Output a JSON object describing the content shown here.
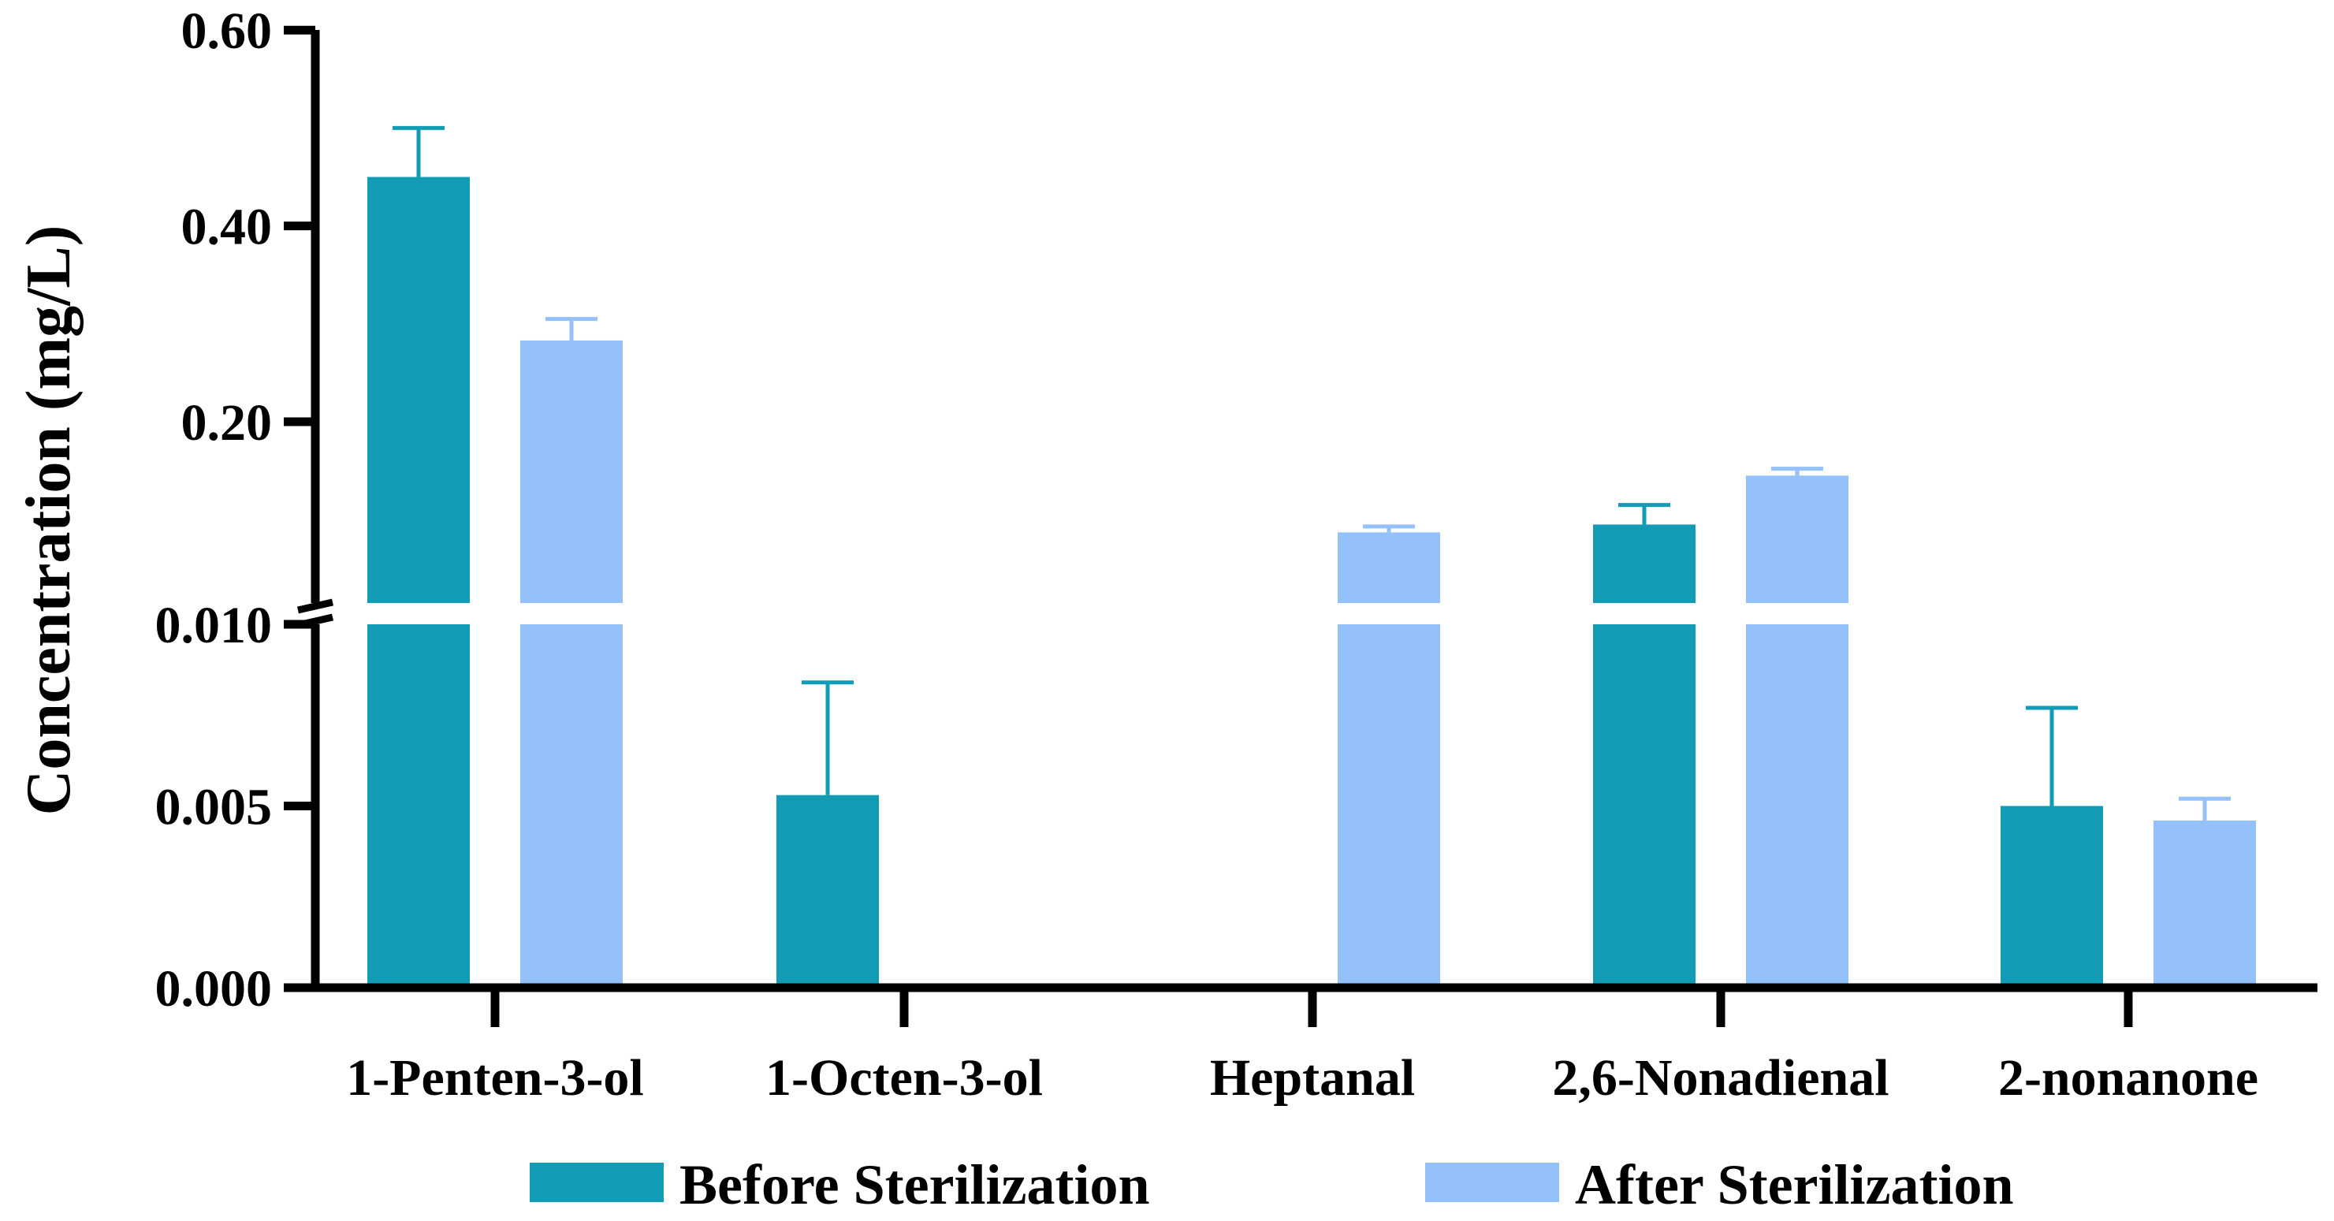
{
  "chart_data": {
    "type": "bar",
    "title": "",
    "xlabel": "",
    "ylabel": "Concentration (mg/L)",
    "categories": [
      "1-Penten-3-ol",
      "1-Octen-3-ol",
      "Heptanal",
      "2,6-Nonadienal",
      "2-nonanone"
    ],
    "series": [
      {
        "name": "Before Sterilization",
        "color": "#129bb4",
        "values": [
          0.45,
          0.0053,
          0,
          0.095,
          0.005
        ],
        "errors": [
          0.05,
          0.0031,
          0,
          0.02,
          0.0027
        ]
      },
      {
        "name": "After Sterilization",
        "color": "#94c1f9",
        "values": [
          0.283,
          0,
          0.087,
          0.145,
          0.0046
        ],
        "errors": [
          0.022,
          0,
          0.006,
          0.007,
          0.0006
        ]
      }
    ],
    "y_axis": {
      "broken": true,
      "lower_segment": {
        "ylim": [
          0,
          0.01
        ],
        "ticks": [
          0.0,
          0.005,
          0.01
        ],
        "tick_labels": [
          "0.000",
          "0.005",
          "0.010"
        ]
      },
      "upper_segment": {
        "ylim": [
          0.01,
          0.6
        ],
        "ticks": [
          0.2,
          0.4,
          0.6
        ],
        "tick_labels": [
          "0.20",
          "0.40",
          "0.60"
        ]
      }
    },
    "legend_position": "bottom",
    "grid": false
  }
}
